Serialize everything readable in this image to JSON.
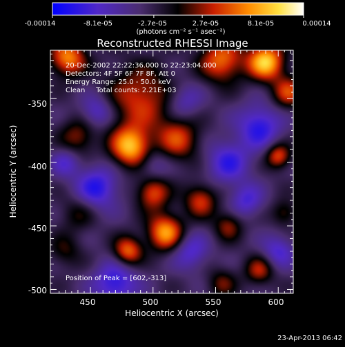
{
  "colorbar": {
    "tick_labels": [
      "-0.00014",
      "-8.1e-05",
      "-2.7e-05",
      "2.7e-05",
      "8.1e-05",
      "0.00014"
    ],
    "range": [
      -0.00014,
      0.00014
    ],
    "unit_label": "(photons cm⁻² s⁻¹ asec⁻²)"
  },
  "chart_data": {
    "type": "heatmap",
    "title": "Reconstructed RHESSI Image",
    "xlabel": "Heliocentric X (arcsec)",
    "ylabel": "Heliocentric Y (arcsec)",
    "xlim": [
      418,
      612
    ],
    "ylim": [
      -503,
      -312
    ],
    "xticks": [
      450,
      500,
      550,
      600
    ],
    "yticks": [
      -500,
      -450,
      -400,
      -350
    ],
    "colormap": "blue-purple-black-red-yellow-white",
    "annotations": [
      "20-Dec-2002 22:22:36.000 to 22:23:04.000",
      "Detectors: 4F 5F 6F 7F 8F, Att 0",
      "Energy Range: 25.0 - 50.0 keV",
      "Clean     Total counts: 2.21E+03"
    ],
    "peak_text": "Position of Peak = [602,-313]",
    "peak": [
      602,
      -313
    ],
    "sources": [
      {
        "x": 590,
        "y": -321,
        "v": 0.00014,
        "s": 10
      },
      {
        "x": 555,
        "y": -320,
        "v": 0.0001,
        "s": 12
      },
      {
        "x": 490,
        "y": -350,
        "v": 8e-05,
        "s": 18
      },
      {
        "x": 432,
        "y": -318,
        "v": 0.00011,
        "s": 10
      },
      {
        "x": 608,
        "y": -345,
        "v": 8e-05,
        "s": 9
      },
      {
        "x": 482,
        "y": -388,
        "v": 0.00013,
        "s": 11
      },
      {
        "x": 520,
        "y": -382,
        "v": 8e-05,
        "s": 12
      },
      {
        "x": 440,
        "y": -380,
        "v": 6e-05,
        "s": 10
      },
      {
        "x": 500,
        "y": -424,
        "v": 9e-05,
        "s": 9
      },
      {
        "x": 538,
        "y": -430,
        "v": 8e-05,
        "s": 9
      },
      {
        "x": 510,
        "y": -455,
        "v": 0.00012,
        "s": 10
      },
      {
        "x": 480,
        "y": -470,
        "v": 0.0001,
        "s": 8
      },
      {
        "x": 560,
        "y": -450,
        "v": 6e-05,
        "s": 8
      },
      {
        "x": 600,
        "y": -395,
        "v": 9e-05,
        "s": 7
      },
      {
        "x": 605,
        "y": -440,
        "v": 5e-05,
        "s": 7
      },
      {
        "x": 585,
        "y": -485,
        "v": 7e-05,
        "s": 8
      },
      {
        "x": 555,
        "y": -495,
        "v": 5e-05,
        "s": 8
      },
      {
        "x": 440,
        "y": -440,
        "v": 4e-05,
        "s": 10
      },
      {
        "x": 430,
        "y": -470,
        "v": 4e-05,
        "s": 9
      },
      {
        "x": 585,
        "y": -372,
        "v": -8e-05,
        "s": 12
      },
      {
        "x": 560,
        "y": -400,
        "v": -7e-05,
        "s": 12
      },
      {
        "x": 455,
        "y": -420,
        "v": -8e-05,
        "s": 12
      },
      {
        "x": 530,
        "y": -470,
        "v": -6e-05,
        "s": 10
      },
      {
        "x": 470,
        "y": -495,
        "v": -8e-05,
        "s": 12
      },
      {
        "x": 600,
        "y": -470,
        "v": -6e-05,
        "s": 9
      },
      {
        "x": 455,
        "y": -360,
        "v": -6e-05,
        "s": 9
      },
      {
        "x": 525,
        "y": -352,
        "v": -5e-05,
        "s": 10
      },
      {
        "x": 430,
        "y": -400,
        "v": -5e-05,
        "s": 8
      },
      {
        "x": 575,
        "y": -430,
        "v": -6e-05,
        "s": 9
      },
      {
        "x": 500,
        "y": -402,
        "v": -4e-05,
        "s": 9
      }
    ]
  },
  "footer": {
    "timestamp": "23-Apr-2013 06:42"
  }
}
